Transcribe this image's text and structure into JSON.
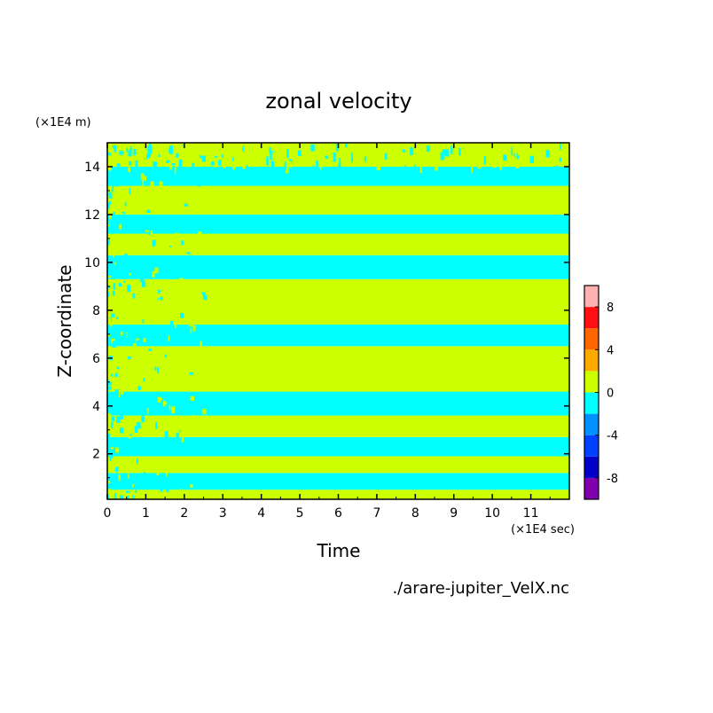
{
  "chart_data": {
    "type": "heatmap",
    "title": "zonal velocity",
    "xlabel": "Time",
    "ylabel": "Z-coordinate",
    "x_unit": "(×1E4 sec)",
    "y_unit": "(×1E4 m)",
    "source_label": "./arare-jupiter_VelX.nc",
    "xlim": [
      0,
      12
    ],
    "ylim": [
      0.1,
      15
    ],
    "x_ticks": [
      0,
      1,
      2,
      3,
      4,
      5,
      6,
      7,
      8,
      9,
      10,
      11
    ],
    "y_ticks": [
      2,
      4,
      6,
      8,
      10,
      12,
      14
    ],
    "colorbar": {
      "levels": [
        -10,
        -8,
        -6,
        -4,
        -2,
        0,
        2,
        4,
        6,
        8,
        10
      ],
      "tick_labels": [
        "-8",
        "-4",
        "0",
        "4",
        "8"
      ],
      "tick_values": [
        -8,
        -4,
        0,
        4,
        8
      ],
      "colors": [
        "#8000b0",
        "#0000c8",
        "#0040ff",
        "#0090ff",
        "#00ffff",
        "#ccff00",
        "#ffaa00",
        "#ff6600",
        "#ff1010",
        "#ffb0b0"
      ]
    },
    "bands": [
      {
        "z0": 0.1,
        "z1": 0.5,
        "sign": "positive"
      },
      {
        "z0": 0.5,
        "z1": 1.2,
        "sign": "negative"
      },
      {
        "z0": 1.2,
        "z1": 1.9,
        "sign": "positive"
      },
      {
        "z0": 1.9,
        "z1": 2.7,
        "sign": "negative"
      },
      {
        "z0": 2.7,
        "z1": 3.6,
        "sign": "positive"
      },
      {
        "z0": 3.6,
        "z1": 4.6,
        "sign": "negative"
      },
      {
        "z0": 4.6,
        "z1": 6.5,
        "sign": "positive"
      },
      {
        "z0": 6.5,
        "z1": 7.4,
        "sign": "negative"
      },
      {
        "z0": 7.4,
        "z1": 9.3,
        "sign": "positive"
      },
      {
        "z0": 9.3,
        "z1": 10.3,
        "sign": "negative"
      },
      {
        "z0": 10.3,
        "z1": 11.2,
        "sign": "positive"
      },
      {
        "z0": 11.2,
        "z1": 12.0,
        "sign": "negative"
      },
      {
        "z0": 12.0,
        "z1": 13.2,
        "sign": "positive"
      },
      {
        "z0": 13.2,
        "z1": 14.0,
        "sign": "negative"
      },
      {
        "z0": 14.0,
        "z1": 15.0,
        "sign": "mixed"
      }
    ],
    "grid": false,
    "legend": "colorbar-right"
  }
}
